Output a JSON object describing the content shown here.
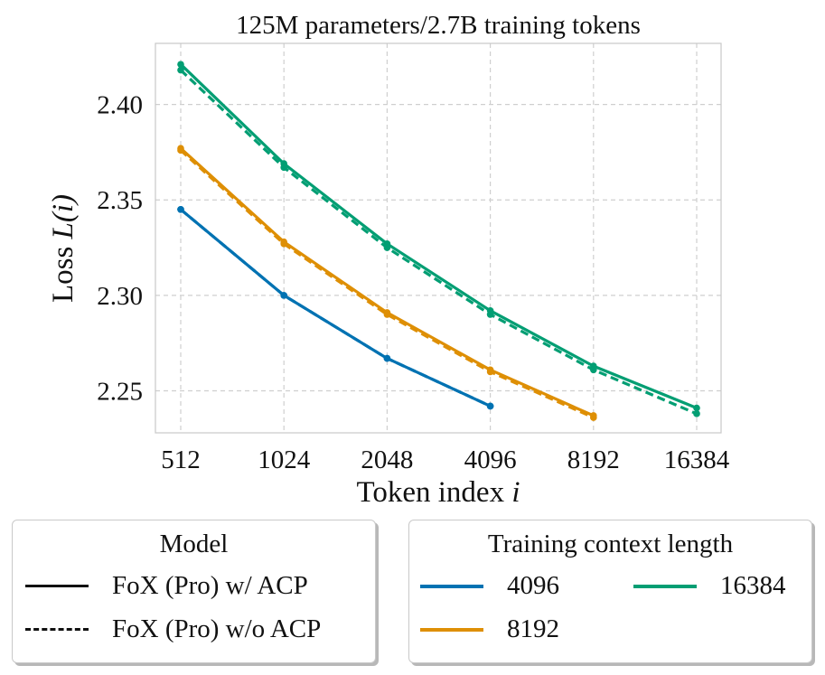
{
  "chart_data": {
    "type": "line",
    "title": "125M parameters/2.7B training tokens",
    "xlabel_prefix": "Token index ",
    "xlabel_var": "i",
    "ylabel_prefix": "Loss ",
    "ylabel_var": "L(i)",
    "x_scale": "log2",
    "x": [
      512,
      1024,
      2048,
      4096,
      8192,
      16384
    ],
    "x_tick_labels": [
      "512",
      "1024",
      "2048",
      "4096",
      "8192",
      "16384"
    ],
    "ylim": [
      2.228,
      2.432
    ],
    "y_ticks": [
      2.25,
      2.3,
      2.35,
      2.4
    ],
    "y_tick_labels": [
      "2.25",
      "2.30",
      "2.35",
      "2.40"
    ],
    "grid": true,
    "series": [
      {
        "name": "4096 FoX (Pro) w/ ACP",
        "context_length": "4096",
        "model": "FoX (Pro) w/ ACP",
        "style": "solid",
        "color": "#0072b2",
        "x": [
          512,
          1024,
          2048,
          4096
        ],
        "values": [
          2.345,
          2.3,
          2.267,
          2.242
        ]
      },
      {
        "name": "4096 FoX (Pro) w/o ACP",
        "context_length": "4096",
        "model": "FoX (Pro) w/o ACP",
        "style": "dashed",
        "color": "#0072b2",
        "x": [
          512,
          1024,
          2048,
          4096
        ],
        "values": [
          2.345,
          2.3,
          2.267,
          2.242
        ]
      },
      {
        "name": "8192 FoX (Pro) w/ ACP",
        "context_length": "8192",
        "model": "FoX (Pro) w/ ACP",
        "style": "solid",
        "color": "#de8f05",
        "x": [
          512,
          1024,
          2048,
          4096,
          8192
        ],
        "values": [
          2.377,
          2.328,
          2.291,
          2.261,
          2.237
        ]
      },
      {
        "name": "8192 FoX (Pro) w/o ACP",
        "context_length": "8192",
        "model": "FoX (Pro) w/o ACP",
        "style": "dashed",
        "color": "#de8f05",
        "x": [
          512,
          1024,
          2048,
          4096,
          8192
        ],
        "values": [
          2.376,
          2.327,
          2.29,
          2.26,
          2.236
        ]
      },
      {
        "name": "16384 FoX (Pro) w/ ACP",
        "context_length": "16384",
        "model": "FoX (Pro) w/ ACP",
        "style": "solid",
        "color": "#029e73",
        "x": [
          512,
          1024,
          2048,
          4096,
          8192,
          16384
        ],
        "values": [
          2.421,
          2.369,
          2.327,
          2.292,
          2.263,
          2.241
        ]
      },
      {
        "name": "16384 FoX (Pro) w/o ACP",
        "context_length": "16384",
        "model": "FoX (Pro) w/o ACP",
        "style": "dashed",
        "color": "#029e73",
        "x": [
          512,
          1024,
          2048,
          4096,
          8192,
          16384
        ],
        "values": [
          2.418,
          2.367,
          2.325,
          2.29,
          2.261,
          2.238
        ]
      }
    ]
  },
  "legend_model": {
    "title": "Model",
    "items": [
      {
        "label": "FoX (Pro) w/ ACP",
        "style": "solid",
        "color": "#111111"
      },
      {
        "label": "FoX (Pro) w/o ACP",
        "style": "dashed",
        "color": "#111111"
      }
    ]
  },
  "legend_context": {
    "title": "Training context length",
    "items": [
      {
        "label": "4096",
        "color": "#0072b2"
      },
      {
        "label": "16384",
        "color": "#029e73"
      },
      {
        "label": "8192",
        "color": "#de8f05"
      }
    ]
  }
}
